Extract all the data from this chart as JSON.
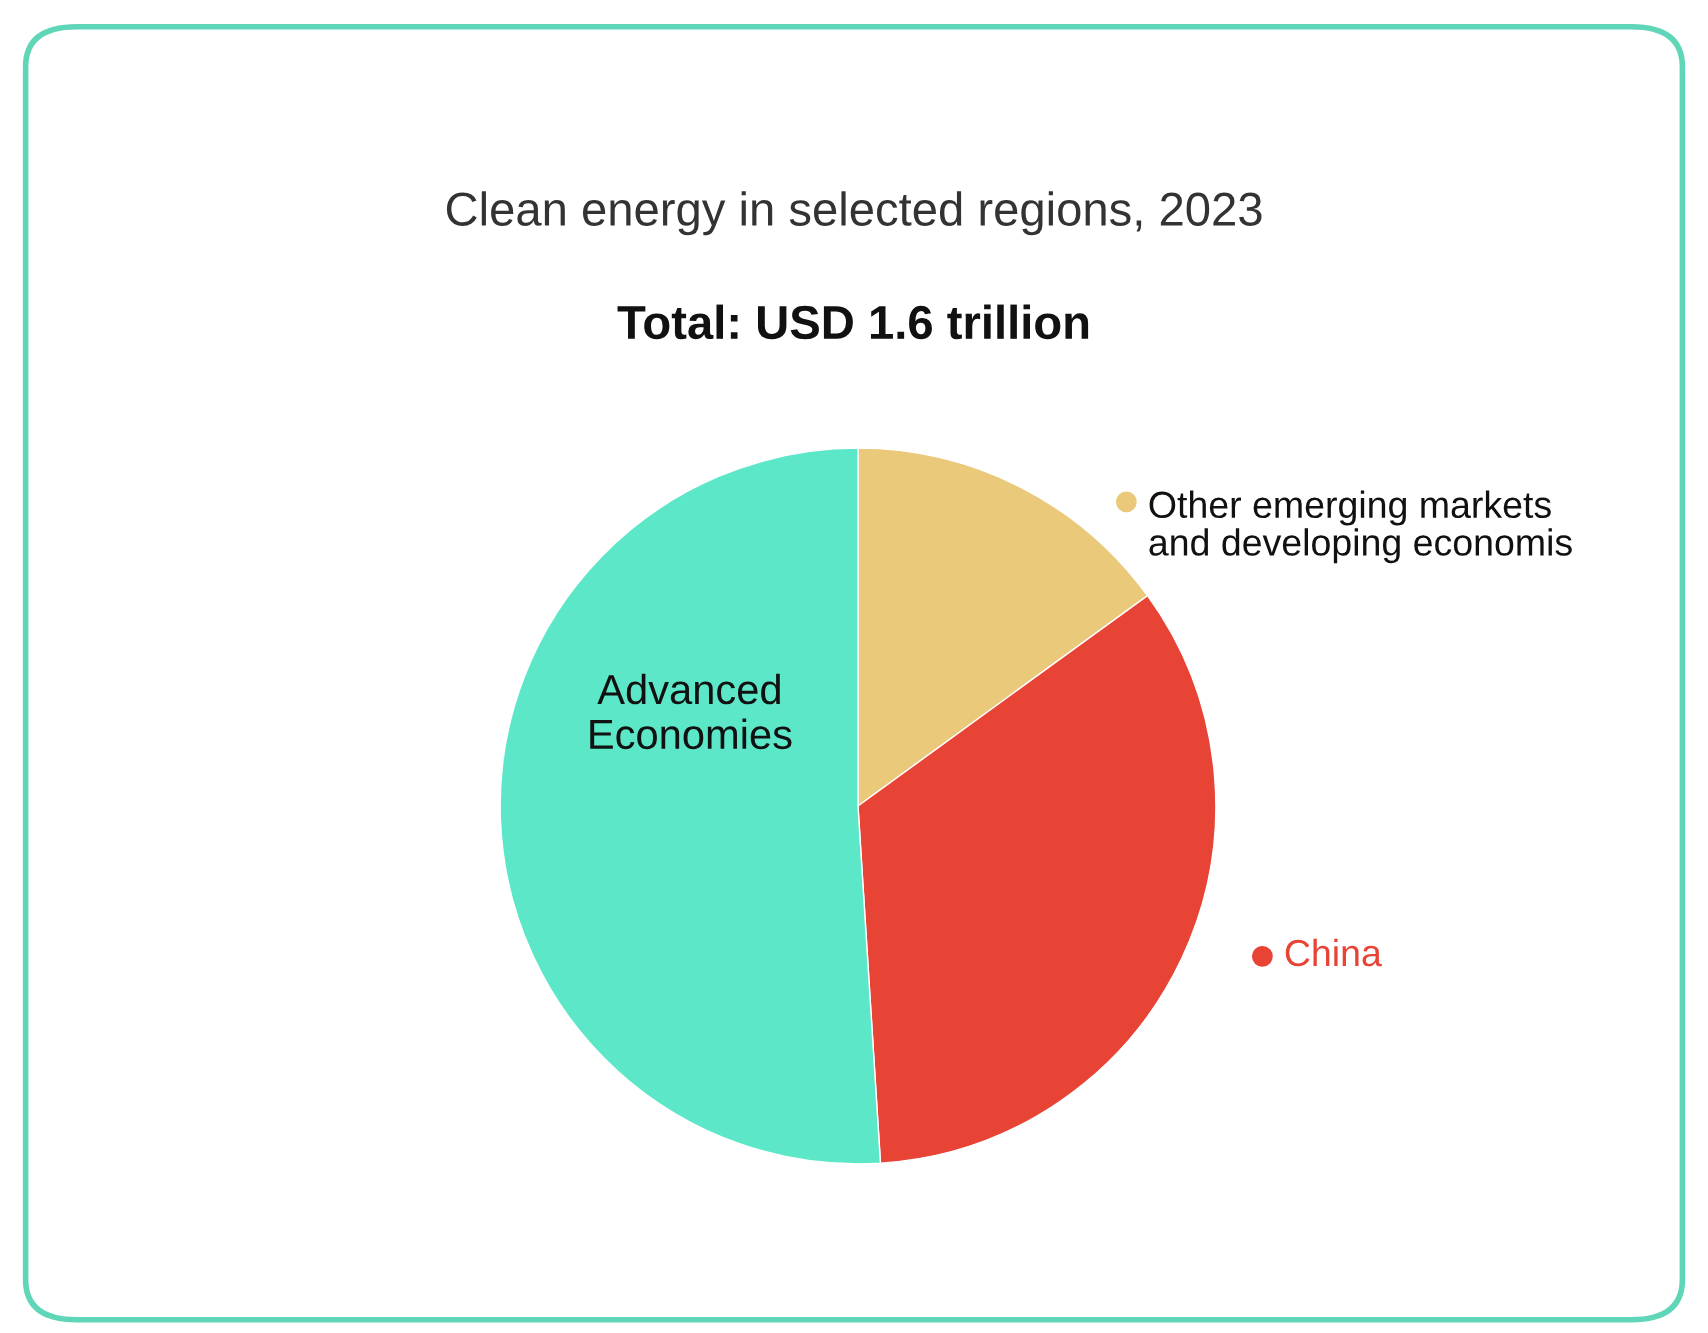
{
  "chart_data": {
    "type": "pie",
    "title": "Clean energy in selected regions, 2023",
    "subtitle": "Total: USD 1.6 trillion",
    "categories": [
      "Other emerging markets\nand developing economis",
      "China",
      "Advanced\nEconomies"
    ],
    "values": [
      15,
      34,
      51
    ],
    "colors": [
      "#ebc97a",
      "#e84436",
      "#5ce8c8"
    ],
    "legend": "right"
  }
}
